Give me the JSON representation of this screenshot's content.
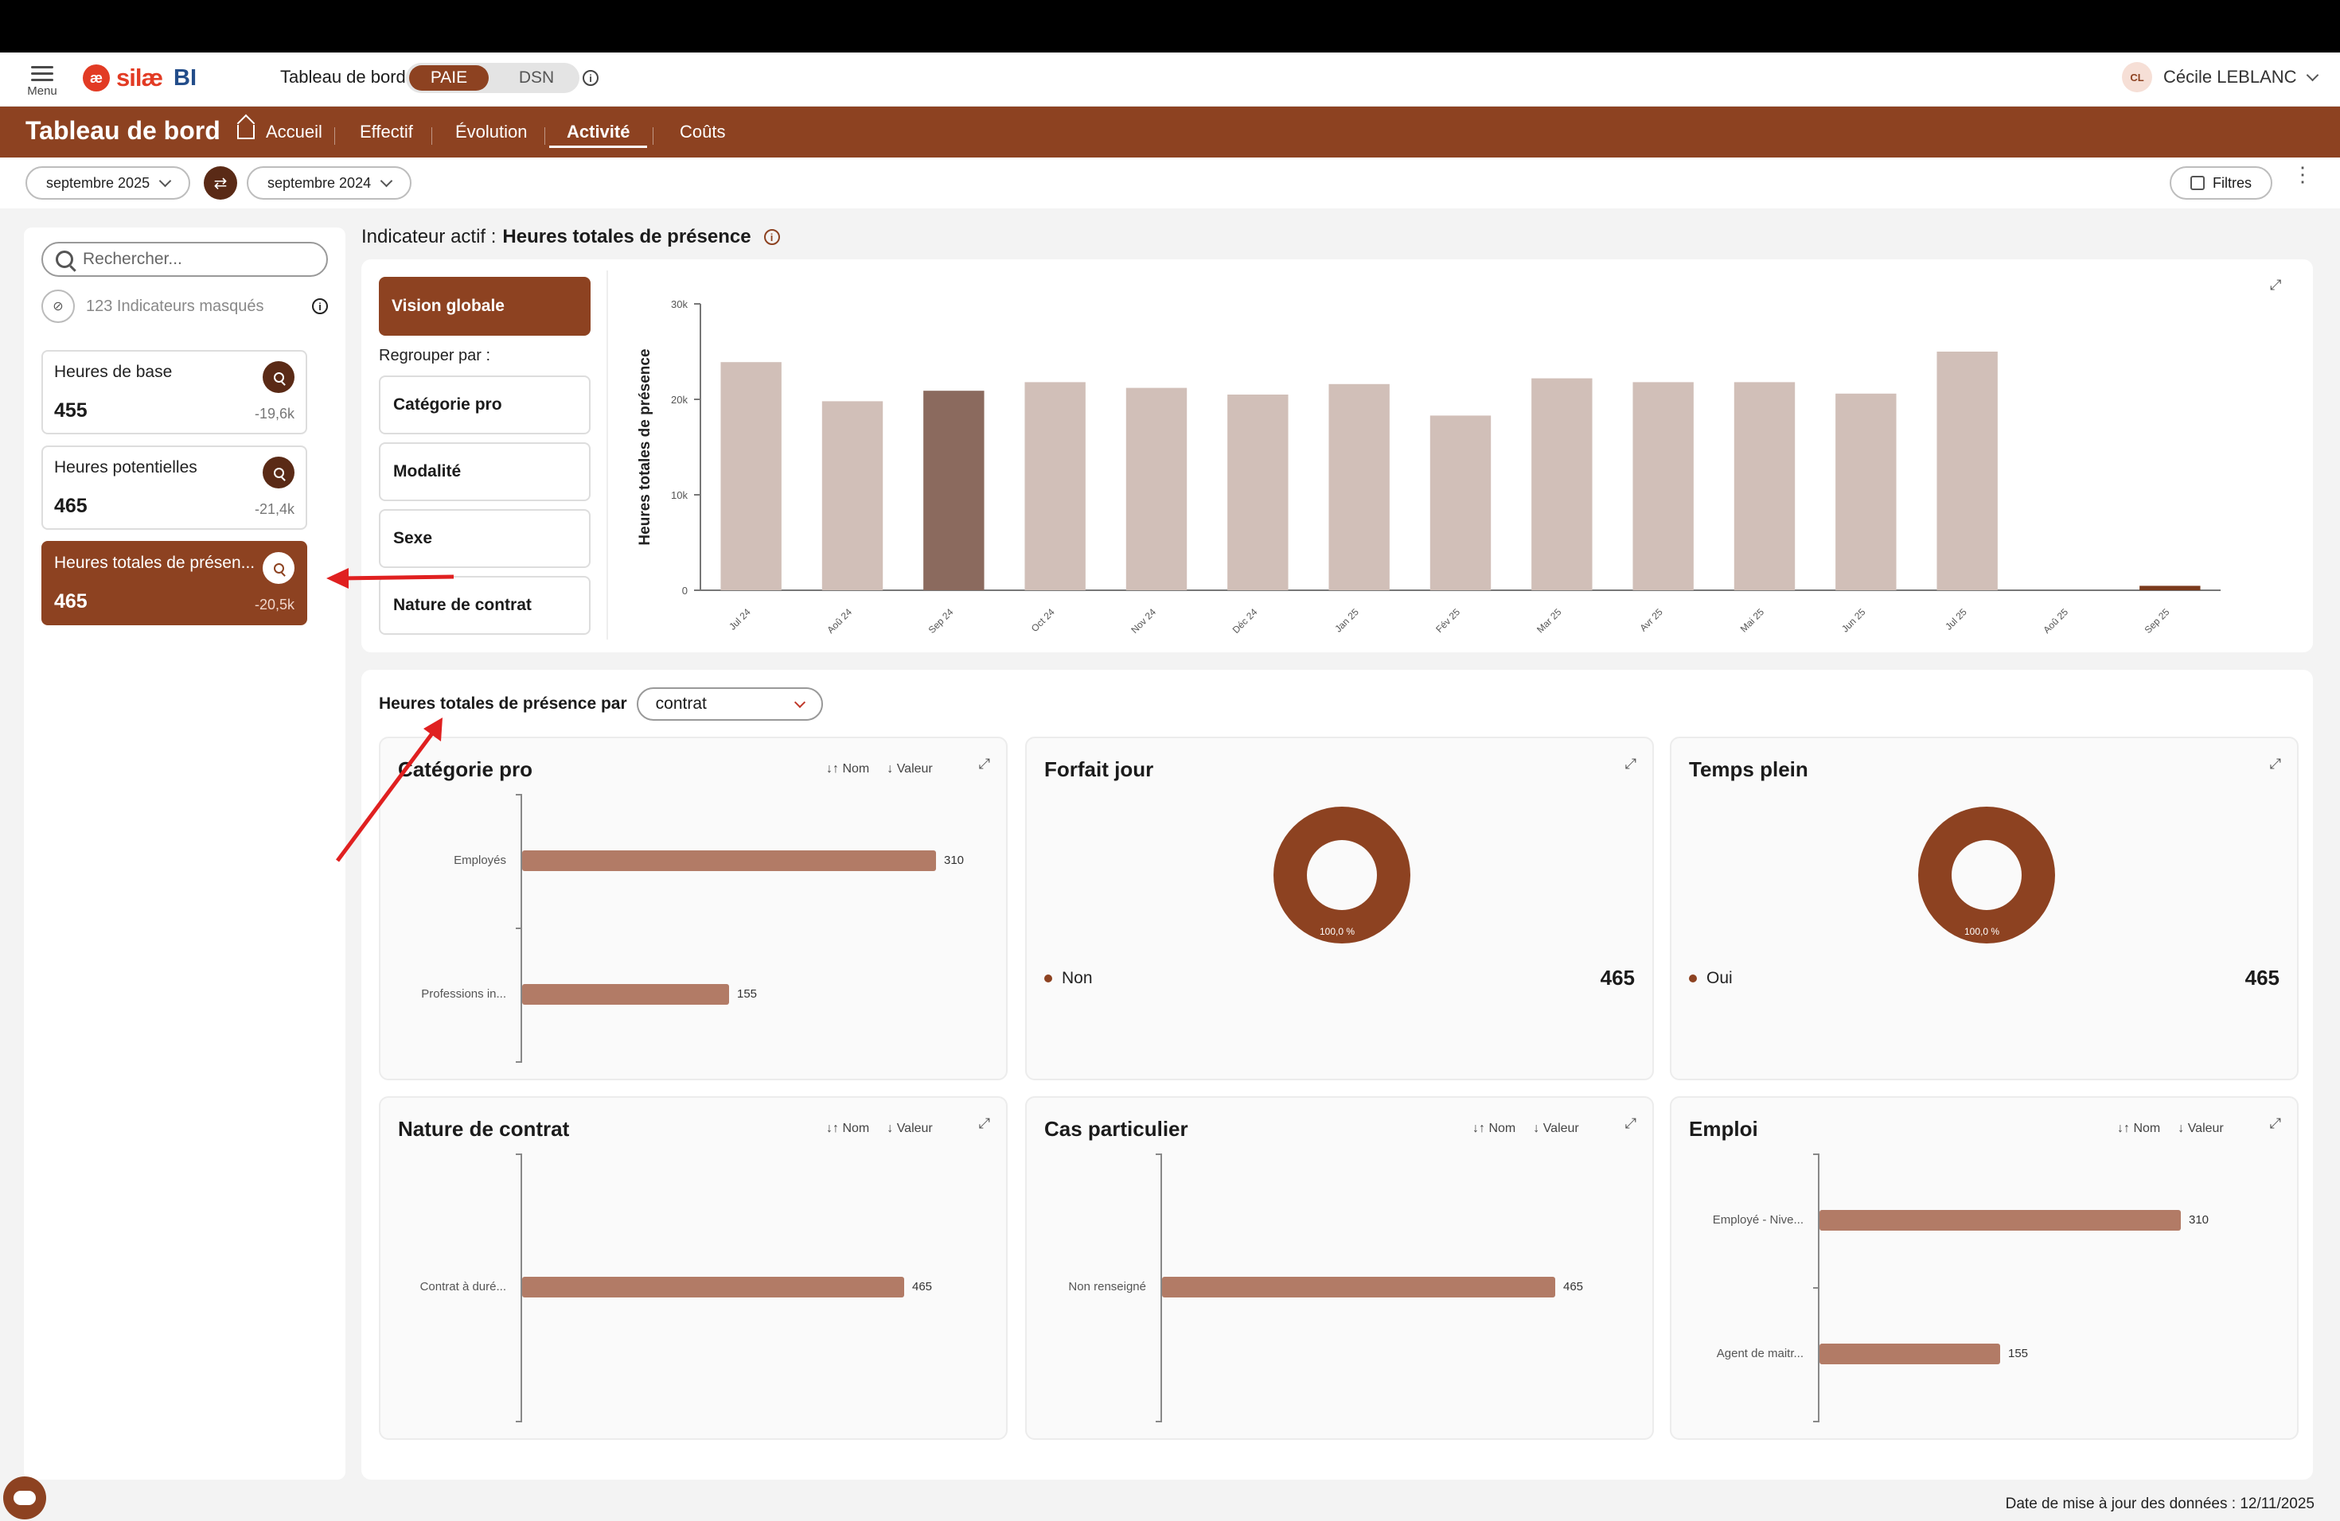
{
  "app": {
    "menu_label": "Menu",
    "logo_mark": "æ",
    "logo_text": "silæ",
    "logo_suffix": "BI",
    "dashboard_label": "Tableau de bord",
    "modes": [
      "PAIE",
      "DSN"
    ],
    "active_mode": "PAIE",
    "info_glyph": "i",
    "user_initials": "CL",
    "user_name": "Cécile LEBLANC"
  },
  "nav": {
    "title": "Tableau de bord",
    "tabs": [
      {
        "label": "Accueil",
        "active": false
      },
      {
        "label": "Effectif",
        "active": false
      },
      {
        "label": "Évolution",
        "active": false
      },
      {
        "label": "Activité",
        "active": true
      },
      {
        "label": "Coûts",
        "active": false
      }
    ]
  },
  "filters": {
    "period_current": "septembre 2025",
    "period_compare": "septembre 2024",
    "filters_label": "Filtres",
    "more_glyph": "⋮"
  },
  "sidebar": {
    "search_placeholder": "Rechercher...",
    "masked_label": "123 Indicateurs masqués",
    "kpis": [
      {
        "name": "Heures de base",
        "value": "455",
        "delta": "-19,6k",
        "active": false
      },
      {
        "name": "Heures potentielles",
        "value": "465",
        "delta": "-21,4k",
        "active": false
      },
      {
        "name": "Heures totales de présen...",
        "value": "465",
        "delta": "-20,5k",
        "active": true
      }
    ]
  },
  "main": {
    "active_indicator_prefix": "Indicateur actif :",
    "active_indicator": "Heures totales de présence",
    "vision_label": "Vision globale",
    "group_by_label": "Regrouper par :",
    "group_options": [
      "Catégorie pro",
      "Modalité",
      "Sexe",
      "Nature de contrat"
    ],
    "presence_by_label": "Heures totales de présence par",
    "presence_by_value": "contrat",
    "sort_name": "Nom",
    "sort_value": "Valeur"
  },
  "chart_data": [
    {
      "type": "bar",
      "title": "",
      "ylabel": "Heures totales de présence",
      "xlabel": "",
      "categories": [
        "Jul 24",
        "Aoû 24",
        "Sep 24",
        "Oct 24",
        "Nov 24",
        "Déc 24",
        "Jan 25",
        "Fév 25",
        "Mar 25",
        "Avr 25",
        "Mai 25",
        "Jun 25",
        "Jul 25",
        "Aoû 25",
        "Sep 25"
      ],
      "values": [
        23900,
        19800,
        20900,
        21800,
        21200,
        20500,
        21600,
        18300,
        22200,
        21800,
        21800,
        20600,
        25000,
        0,
        465
      ],
      "highlighted_category": "Sep 24",
      "yticks": [
        "0",
        "10k",
        "20k",
        "30k"
      ],
      "ylim": [
        0,
        30000
      ],
      "colors": {
        "default": "#d1bfb8",
        "highlight": "#8b6a5e",
        "current": "#7a3a1c"
      }
    },
    {
      "type": "bar",
      "title": "Catégorie pro",
      "orientation": "horizontal",
      "categories": [
        "Employés",
        "Professions in..."
      ],
      "values": [
        310,
        155
      ]
    },
    {
      "type": "pie",
      "title": "Forfait jour",
      "categories": [
        "Non"
      ],
      "values": [
        465
      ],
      "labels": [
        "100,0 %"
      ]
    },
    {
      "type": "pie",
      "title": "Temps plein",
      "categories": [
        "Oui"
      ],
      "values": [
        465
      ],
      "labels": [
        "100,0 %"
      ]
    },
    {
      "type": "bar",
      "title": "Nature de contrat",
      "orientation": "horizontal",
      "categories": [
        "Contrat à duré..."
      ],
      "values": [
        465
      ]
    },
    {
      "type": "bar",
      "title": "Cas particulier",
      "orientation": "horizontal",
      "categories": [
        "Non renseigné"
      ],
      "values": [
        465
      ]
    },
    {
      "type": "bar",
      "title": "Emploi",
      "orientation": "horizontal",
      "categories": [
        "Employé - Nive...",
        "Agent de maitr..."
      ],
      "values": [
        310,
        155
      ]
    }
  ],
  "footer": {
    "update_text": "Date de mise à jour des données : 12/11/2025"
  },
  "colors": {
    "brand": "#8d4221",
    "brand_dark": "#5a2a16",
    "bar": "#b27b66",
    "annotation_arrow": "#e02020"
  }
}
